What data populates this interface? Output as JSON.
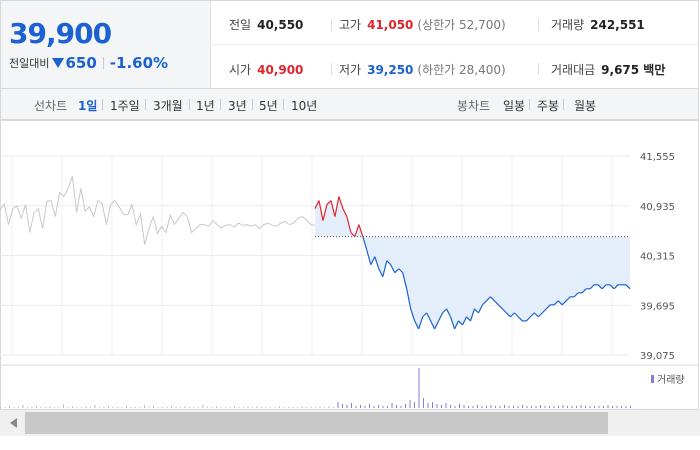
{
  "summary": {
    "price": "39,900",
    "change_label": "전일대비",
    "change_amount": "650",
    "change_pct": "-1.60%",
    "prev_close_label": "전일",
    "prev_close": "40,550",
    "high_label": "고가",
    "high": "41,050",
    "upper_limit": "(상한가 52,700)",
    "volume_label": "거래량",
    "volume": "242,551",
    "open_label": "시가",
    "open": "40,900",
    "low_label": "저가",
    "low": "39,250",
    "lower_limit": "(하한가 28,400)",
    "value_label": "거래대금",
    "trade_value": "9,675 백만"
  },
  "line_chart_tabs": {
    "label": "선차트",
    "items": [
      "1일",
      "1주일",
      "3개월",
      "1년",
      "3년",
      "5년",
      "10년"
    ],
    "selected": "1일"
  },
  "candle_chart_tabs": {
    "label": "봉차트",
    "items": [
      "일봉",
      "주봉",
      "월봉"
    ]
  },
  "colors": {
    "up": "#e0242c",
    "down": "#1b61d1",
    "fill": "#e3eefa",
    "prev_day": "#c8c8c8"
  },
  "chart_data": {
    "type": "line",
    "y_ticks": [
      "41,555",
      "40,935",
      "40,315",
      "39,695",
      "39,075"
    ],
    "y_tick_values": [
      41555,
      40935,
      40315,
      39695,
      39075
    ],
    "ylim": [
      39075,
      41555
    ],
    "grid": true,
    "reference_price": 40550,
    "volume_legend": "거래량",
    "prev_day_series": [
      40880,
      40960,
      40700,
      40900,
      40930,
      40780,
      40950,
      40600,
      40850,
      40900,
      40650,
      40990,
      41000,
      40800,
      41100,
      41050,
      41150,
      41300,
      40850,
      41150,
      40870,
      40920,
      40800,
      41000,
      40960,
      40700,
      40950,
      41000,
      40920,
      40830,
      40820,
      40950,
      40700,
      40830,
      40450,
      40650,
      40800,
      40590,
      40680,
      40600,
      40820,
      40700,
      40780,
      40850,
      40800,
      40600,
      40650,
      40700,
      40700,
      40680,
      40750,
      40700,
      40660,
      40690,
      40700,
      40670,
      40720,
      40690,
      40700,
      40680,
      40700,
      40650,
      40700,
      40720,
      40690,
      40680,
      40720,
      40740,
      40700,
      40720,
      40780,
      40800,
      40760,
      40700,
      40690
    ],
    "today_series": [
      40900,
      41000,
      40750,
      40950,
      41000,
      40800,
      41050,
      40900,
      40800,
      40600,
      40550,
      40700,
      40550,
      40380,
      40200,
      40300,
      40150,
      40050,
      40250,
      40200,
      40100,
      40150,
      40100,
      39900,
      39650,
      39500,
      39400,
      39550,
      39600,
      39500,
      39400,
      39500,
      39600,
      39650,
      39550,
      39400,
      39500,
      39450,
      39550,
      39500,
      39650,
      39600,
      39700,
      39750,
      39800,
      39750,
      39700,
      39650,
      39600,
      39550,
      39600,
      39550,
      39500,
      39500,
      39550,
      39600,
      39550,
      39600,
      39650,
      39700,
      39700,
      39750,
      39700,
      39750,
      39800,
      39800,
      39850,
      39850,
      39900,
      39900,
      39950,
      39950,
      39900,
      39950,
      39950,
      39900,
      39950,
      39950,
      39950,
      39900
    ],
    "volume_series": [
      1,
      1,
      2,
      1,
      1,
      3,
      1,
      1,
      2,
      1,
      1,
      2,
      1,
      1,
      4,
      1,
      2,
      1,
      1,
      2,
      1,
      3,
      1,
      1,
      2,
      1,
      1,
      1,
      2,
      1,
      1,
      1,
      3,
      1,
      2,
      1,
      1,
      1,
      2,
      1,
      1,
      2,
      1,
      1,
      1,
      3,
      1,
      1,
      2,
      1,
      1,
      1,
      2,
      1,
      1,
      1,
      1,
      2,
      1,
      1,
      1,
      1,
      2,
      1,
      1,
      1,
      1,
      2,
      1,
      1,
      1,
      1,
      1,
      2,
      1,
      6,
      4,
      3,
      5,
      2,
      3,
      2,
      4,
      2,
      3,
      2,
      2,
      5,
      3,
      2,
      4,
      8,
      6,
      40,
      10,
      5,
      6,
      4,
      3,
      5,
      3,
      2,
      4,
      3,
      2,
      2,
      3,
      2,
      2,
      3,
      2,
      2,
      3,
      2,
      2,
      2,
      3,
      2,
      2,
      2,
      3,
      2,
      2,
      2,
      2,
      3,
      2,
      2,
      2,
      3,
      2,
      2,
      2,
      2,
      2,
      3,
      2,
      2,
      2,
      2,
      2
    ]
  }
}
